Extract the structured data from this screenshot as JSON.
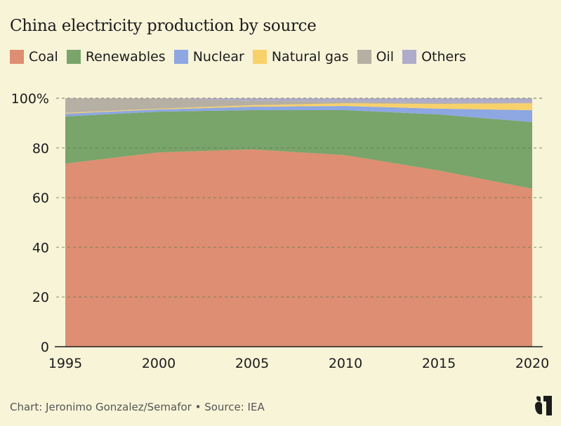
{
  "title": "China electricity production by source",
  "footer": "Chart: Jeronimo Gonzalez/Semafor • Source: IEA",
  "logo": "semafor-logo",
  "chart_data": {
    "type": "area",
    "stacked": true,
    "title": "China electricity production by source",
    "xlabel": "",
    "ylabel": "",
    "x": [
      1995,
      2000,
      2005,
      2010,
      2015,
      2020
    ],
    "x_ticks": [
      "1995",
      "2000",
      "2005",
      "2010",
      "2015",
      "2020"
    ],
    "y_ticks": [
      "0",
      "20",
      "40",
      "60",
      "80",
      "100%"
    ],
    "y_tick_values": [
      0,
      20,
      40,
      60,
      80,
      100
    ],
    "ylim": [
      0,
      100
    ],
    "grid": true,
    "legend_position": "top-left",
    "series": [
      {
        "name": "Coal",
        "color": "#de8e72",
        "values": [
          73.7,
          78.2,
          79.4,
          77.1,
          70.9,
          63.6
        ]
      },
      {
        "name": "Renewables",
        "color": "#79a46a",
        "values": [
          19.0,
          16.4,
          15.8,
          18.1,
          22.6,
          26.8
        ]
      },
      {
        "name": "Nuclear",
        "color": "#8da7e2",
        "values": [
          1.1,
          0.9,
          1.4,
          1.7,
          2.3,
          4.8
        ]
      },
      {
        "name": "Natural gas",
        "color": "#f8d16b",
        "values": [
          0.3,
          0.3,
          0.6,
          1.1,
          1.9,
          2.8
        ]
      },
      {
        "name": "Oil",
        "color": "#b6afa3",
        "values": [
          5.9,
          4.1,
          1.8,
          0.6,
          0.5,
          0.2
        ]
      },
      {
        "name": "Others",
        "color": "#aeacca",
        "values": [
          0.0,
          0.1,
          1.0,
          1.4,
          1.8,
          1.8
        ]
      }
    ]
  }
}
